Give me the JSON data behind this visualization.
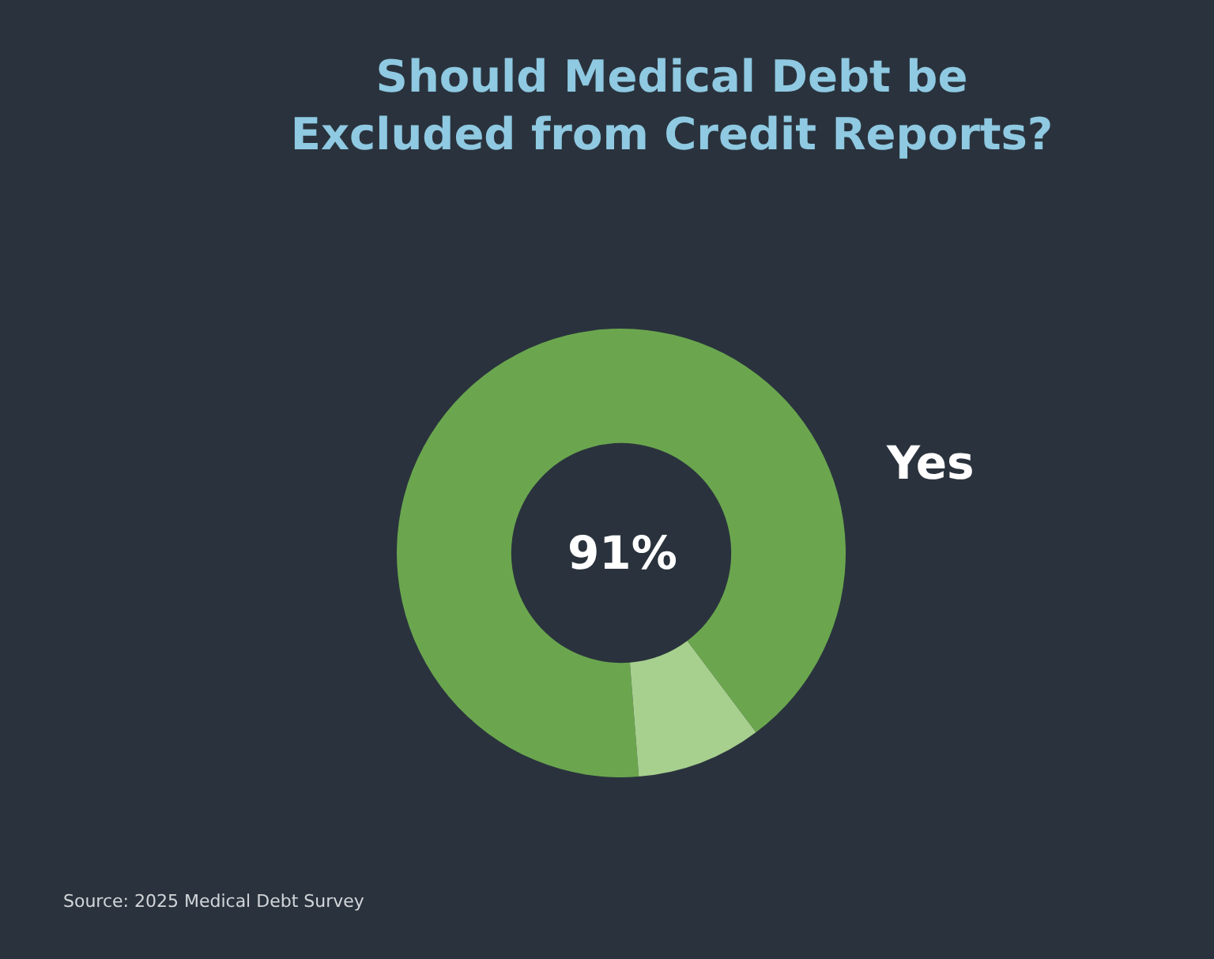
{
  "chart_data": {
    "type": "donut",
    "title": "Should Medical Debt be\nExcluded from Credit Reports?",
    "categories": [
      "Yes",
      null
    ],
    "values": [
      91,
      9
    ],
    "colors": [
      "#6ba64f",
      "#a7cf8e"
    ],
    "value_labels": [
      "91%",
      null
    ],
    "annotations": [
      "Source: 2025 Medical Debt Survey"
    ]
  }
}
